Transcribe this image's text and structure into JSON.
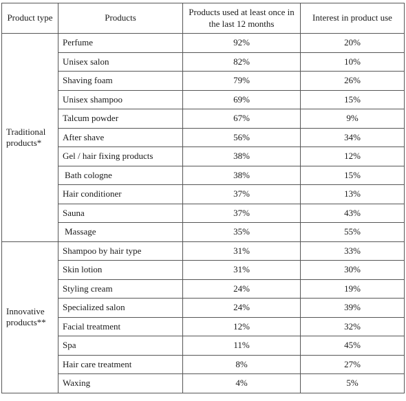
{
  "table": {
    "headers": {
      "type": "Product type",
      "products": "Products",
      "used": "Products used at least once in the last 12 months",
      "interest": "Interest in product use"
    },
    "groups": [
      {
        "label": "Traditional products*",
        "rows": [
          {
            "product": "Perfume",
            "used": "92%",
            "interest": "20%"
          },
          {
            "product": "Unisex salon",
            "used": "82%",
            "interest": "10%"
          },
          {
            "product": "Shaving foam",
            "used": "79%",
            "interest": "26%"
          },
          {
            "product": "Unisex shampoo",
            "used": "69%",
            "interest": "15%"
          },
          {
            "product": "Talcum powder",
            "used": "67%",
            "interest": "9%"
          },
          {
            "product": "After shave",
            "used": "56%",
            "interest": "34%"
          },
          {
            "product": "Gel / hair fixing products",
            "used": "38%",
            "interest": "12%"
          },
          {
            "product": "Bath cologne",
            "used": "38%",
            "interest": "15%"
          },
          {
            "product": "Hair conditioner",
            "used": "37%",
            "interest": "13%"
          },
          {
            "product": "Sauna",
            "used": "37%",
            "interest": "43%"
          },
          {
            "product": "Massage",
            "used": "35%",
            "interest": "55%"
          }
        ]
      },
      {
        "label": "Innovative products**",
        "rows": [
          {
            "product": "Shampoo by hair type",
            "used": "31%",
            "interest": "33%"
          },
          {
            "product": "Skin lotion",
            "used": "31%",
            "interest": "30%"
          },
          {
            "product": "Styling cream",
            "used": "24%",
            "interest": "19%"
          },
          {
            "product": "Specialized salon",
            "used": "24%",
            "interest": "39%"
          },
          {
            "product": "Facial treatment",
            "used": "12%",
            "interest": "32%"
          },
          {
            "product": "Spa",
            "used": "11%",
            "interest": "45%"
          },
          {
            "product": "Hair care treatment",
            "used": "8%",
            "interest": "27%"
          },
          {
            "product": "Waxing",
            "used": "4%",
            "interest": "5%"
          }
        ]
      }
    ]
  }
}
